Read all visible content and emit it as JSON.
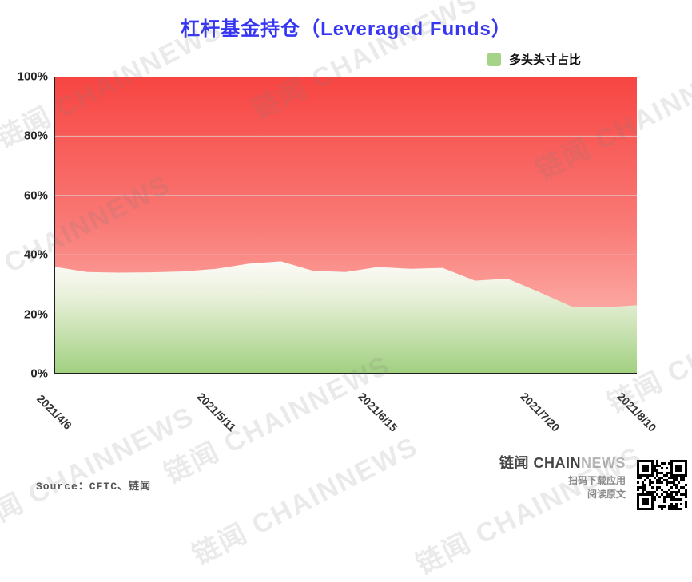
{
  "title": "杠杆基金持仓（Leveraged Funds）",
  "legend": {
    "label": "多头头寸占比",
    "swatch_color": "#a5d387"
  },
  "chart_data": {
    "type": "area",
    "x": [
      "2021/4/6",
      "2021/4/13",
      "2021/4/20",
      "2021/4/27",
      "2021/5/4",
      "2021/5/11",
      "2021/5/18",
      "2021/5/25",
      "2021/6/1",
      "2021/6/8",
      "2021/6/15",
      "2021/6/22",
      "2021/6/29",
      "2021/7/6",
      "2021/7/13",
      "2021/7/20",
      "2021/7/27",
      "2021/8/3",
      "2021/8/10"
    ],
    "series": [
      {
        "name": "多头头寸占比",
        "values": [
          36.0,
          34.2,
          34.0,
          34.1,
          34.4,
          35.3,
          37.0,
          37.8,
          34.6,
          34.2,
          35.9,
          35.3,
          35.6,
          31.3,
          32.0,
          27.4,
          22.5,
          22.3,
          23.0
        ]
      }
    ],
    "x_tick_labels": [
      "2021/4/6",
      "2021/5/11",
      "2021/6/15",
      "2021/7/20",
      "2021/8/10"
    ],
    "y_ticks": [
      0,
      20,
      40,
      60,
      80,
      100
    ],
    "y_tick_suffix": "%",
    "ylim": [
      0,
      100
    ],
    "grid": true,
    "legend_position": "top-right",
    "colors": {
      "red_top": "#f74542",
      "red_mid": "#f97a76",
      "red_bottom": "#ffc9c3",
      "green_area_top": "#fdfefb",
      "green_area_mid": "#e9f3dd",
      "green_area_bottom": "#9ed07e",
      "gridline": "#dcdcdc",
      "axis": "#1f1f1f"
    }
  },
  "footer": {
    "source": "Source：CFTC、链闻",
    "brand_dark": "链闻 CHAIN",
    "brand_light": "NEWS",
    "caption_download": "扫码下载应用",
    "caption_read": "阅读原文"
  },
  "watermark_text": "链闻 CHAINNEWS"
}
